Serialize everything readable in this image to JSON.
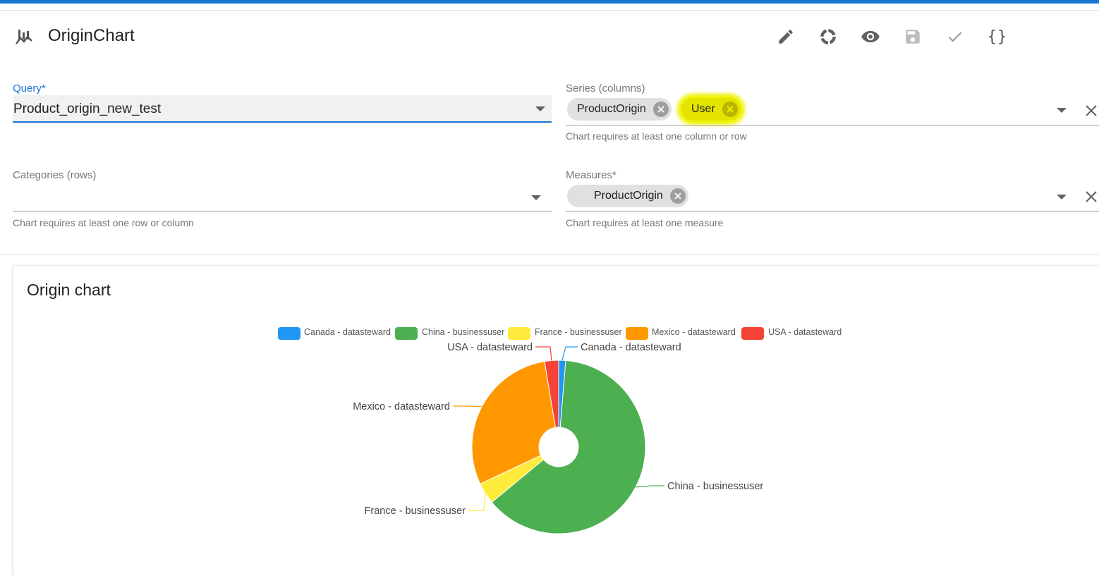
{
  "app": {
    "title": "OriginChart"
  },
  "toolbar": [
    "edit-icon",
    "refresh-icon",
    "preview-icon",
    "save-icon",
    "check-icon",
    "json-icon"
  ],
  "toolbar_braces": "{}",
  "form": {
    "query": {
      "label": "Query*",
      "value": "Product_origin_new_test"
    },
    "series": {
      "label": "Series (columns)",
      "chips": [
        "ProductOrigin",
        "User"
      ],
      "hint": "Chart requires at least one column or row"
    },
    "categories": {
      "label": "Categories (rows)",
      "hint": "Chart requires at least one row or column"
    },
    "measures": {
      "label": "Measures*",
      "chips": [
        "ProductOrigin"
      ],
      "hint": "Chart requires at least one measure"
    }
  },
  "chart_data": {
    "type": "pie",
    "title": "Origin chart",
    "legend_position": "top",
    "donut": true,
    "slices": [
      {
        "label": "Canada - datasteward",
        "value": 1.3,
        "color": "#2196f3"
      },
      {
        "label": "China - businessuser",
        "value": 62.7,
        "color": "#4caf50"
      },
      {
        "label": "France - businessuser",
        "value": 4.0,
        "color": "#ffeb3b"
      },
      {
        "label": "Mexico - datasteward",
        "value": 29.4,
        "color": "#ff9800"
      },
      {
        "label": "USA - datasteward",
        "value": 2.6,
        "color": "#f44336"
      }
    ]
  }
}
